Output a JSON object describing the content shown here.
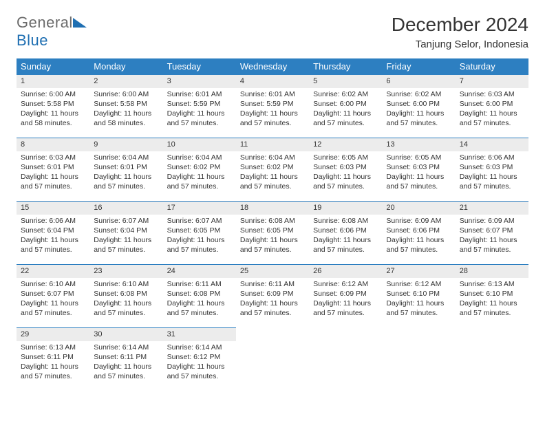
{
  "logo": {
    "word1": "General",
    "word2": "Blue"
  },
  "title": "December 2024",
  "subtitle": "Tanjung Selor, Indonesia",
  "columns": [
    "Sunday",
    "Monday",
    "Tuesday",
    "Wednesday",
    "Thursday",
    "Friday",
    "Saturday"
  ],
  "colors": {
    "header_bg": "#2d7fc1",
    "header_fg": "#ffffff",
    "daynum_bg": "#ececec",
    "rule": "#2d7fc1",
    "text": "#333333",
    "logo_gray": "#6b6b6b",
    "logo_blue": "#1f6fb2"
  },
  "weeks": [
    [
      {
        "n": "1",
        "sr": "6:00 AM",
        "ss": "5:58 PM",
        "dl": "11 hours and 58 minutes."
      },
      {
        "n": "2",
        "sr": "6:00 AM",
        "ss": "5:58 PM",
        "dl": "11 hours and 58 minutes."
      },
      {
        "n": "3",
        "sr": "6:01 AM",
        "ss": "5:59 PM",
        "dl": "11 hours and 57 minutes."
      },
      {
        "n": "4",
        "sr": "6:01 AM",
        "ss": "5:59 PM",
        "dl": "11 hours and 57 minutes."
      },
      {
        "n": "5",
        "sr": "6:02 AM",
        "ss": "6:00 PM",
        "dl": "11 hours and 57 minutes."
      },
      {
        "n": "6",
        "sr": "6:02 AM",
        "ss": "6:00 PM",
        "dl": "11 hours and 57 minutes."
      },
      {
        "n": "7",
        "sr": "6:03 AM",
        "ss": "6:00 PM",
        "dl": "11 hours and 57 minutes."
      }
    ],
    [
      {
        "n": "8",
        "sr": "6:03 AM",
        "ss": "6:01 PM",
        "dl": "11 hours and 57 minutes."
      },
      {
        "n": "9",
        "sr": "6:04 AM",
        "ss": "6:01 PM",
        "dl": "11 hours and 57 minutes."
      },
      {
        "n": "10",
        "sr": "6:04 AM",
        "ss": "6:02 PM",
        "dl": "11 hours and 57 minutes."
      },
      {
        "n": "11",
        "sr": "6:04 AM",
        "ss": "6:02 PM",
        "dl": "11 hours and 57 minutes."
      },
      {
        "n": "12",
        "sr": "6:05 AM",
        "ss": "6:03 PM",
        "dl": "11 hours and 57 minutes."
      },
      {
        "n": "13",
        "sr": "6:05 AM",
        "ss": "6:03 PM",
        "dl": "11 hours and 57 minutes."
      },
      {
        "n": "14",
        "sr": "6:06 AM",
        "ss": "6:03 PM",
        "dl": "11 hours and 57 minutes."
      }
    ],
    [
      {
        "n": "15",
        "sr": "6:06 AM",
        "ss": "6:04 PM",
        "dl": "11 hours and 57 minutes."
      },
      {
        "n": "16",
        "sr": "6:07 AM",
        "ss": "6:04 PM",
        "dl": "11 hours and 57 minutes."
      },
      {
        "n": "17",
        "sr": "6:07 AM",
        "ss": "6:05 PM",
        "dl": "11 hours and 57 minutes."
      },
      {
        "n": "18",
        "sr": "6:08 AM",
        "ss": "6:05 PM",
        "dl": "11 hours and 57 minutes."
      },
      {
        "n": "19",
        "sr": "6:08 AM",
        "ss": "6:06 PM",
        "dl": "11 hours and 57 minutes."
      },
      {
        "n": "20",
        "sr": "6:09 AM",
        "ss": "6:06 PM",
        "dl": "11 hours and 57 minutes."
      },
      {
        "n": "21",
        "sr": "6:09 AM",
        "ss": "6:07 PM",
        "dl": "11 hours and 57 minutes."
      }
    ],
    [
      {
        "n": "22",
        "sr": "6:10 AM",
        "ss": "6:07 PM",
        "dl": "11 hours and 57 minutes."
      },
      {
        "n": "23",
        "sr": "6:10 AM",
        "ss": "6:08 PM",
        "dl": "11 hours and 57 minutes."
      },
      {
        "n": "24",
        "sr": "6:11 AM",
        "ss": "6:08 PM",
        "dl": "11 hours and 57 minutes."
      },
      {
        "n": "25",
        "sr": "6:11 AM",
        "ss": "6:09 PM",
        "dl": "11 hours and 57 minutes."
      },
      {
        "n": "26",
        "sr": "6:12 AM",
        "ss": "6:09 PM",
        "dl": "11 hours and 57 minutes."
      },
      {
        "n": "27",
        "sr": "6:12 AM",
        "ss": "6:10 PM",
        "dl": "11 hours and 57 minutes."
      },
      {
        "n": "28",
        "sr": "6:13 AM",
        "ss": "6:10 PM",
        "dl": "11 hours and 57 minutes."
      }
    ],
    [
      {
        "n": "29",
        "sr": "6:13 AM",
        "ss": "6:11 PM",
        "dl": "11 hours and 57 minutes."
      },
      {
        "n": "30",
        "sr": "6:14 AM",
        "ss": "6:11 PM",
        "dl": "11 hours and 57 minutes."
      },
      {
        "n": "31",
        "sr": "6:14 AM",
        "ss": "6:12 PM",
        "dl": "11 hours and 57 minutes."
      },
      null,
      null,
      null,
      null
    ]
  ],
  "labels": {
    "sunrise": "Sunrise: ",
    "sunset": "Sunset: ",
    "daylight": "Daylight: "
  }
}
